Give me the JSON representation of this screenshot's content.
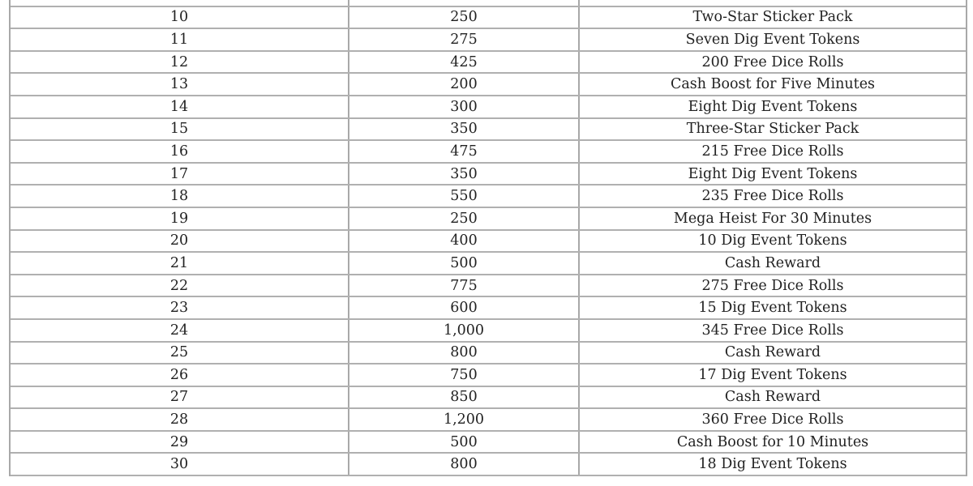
{
  "table": {
    "rows": [
      [
        "10",
        "250",
        "Two-Star Sticker Pack"
      ],
      [
        "11",
        "275",
        "Seven Dig Event Tokens"
      ],
      [
        "12",
        "425",
        "200 Free Dice Rolls"
      ],
      [
        "13",
        "200",
        "Cash Boost for Five Minutes"
      ],
      [
        "14",
        "300",
        "Eight Dig Event Tokens"
      ],
      [
        "15",
        "350",
        "Three-Star Sticker Pack"
      ],
      [
        "16",
        "475",
        "215 Free Dice Rolls"
      ],
      [
        "17",
        "350",
        "Eight Dig Event Tokens"
      ],
      [
        "18",
        "550",
        "235 Free Dice Rolls"
      ],
      [
        "19",
        "250",
        "Mega Heist For 30 Minutes"
      ],
      [
        "20",
        "400",
        "10 Dig Event Tokens"
      ],
      [
        "21",
        "500",
        "Cash Reward"
      ],
      [
        "22",
        "775",
        "275 Free Dice Rolls"
      ],
      [
        "23",
        "600",
        "15 Dig Event Tokens"
      ],
      [
        "24",
        "1,000",
        "345 Free Dice Rolls"
      ],
      [
        "25",
        "800",
        "Cash Reward"
      ],
      [
        "26",
        "750",
        "17 Dig Event Tokens"
      ],
      [
        "27",
        "850",
        "Cash Reward"
      ],
      [
        "28",
        "1,200",
        "360 Free Dice Rolls"
      ],
      [
        "29",
        "500",
        "Cash Boost for 10 Minutes"
      ],
      [
        "30",
        "800",
        "18 Dig Event Tokens"
      ]
    ]
  }
}
